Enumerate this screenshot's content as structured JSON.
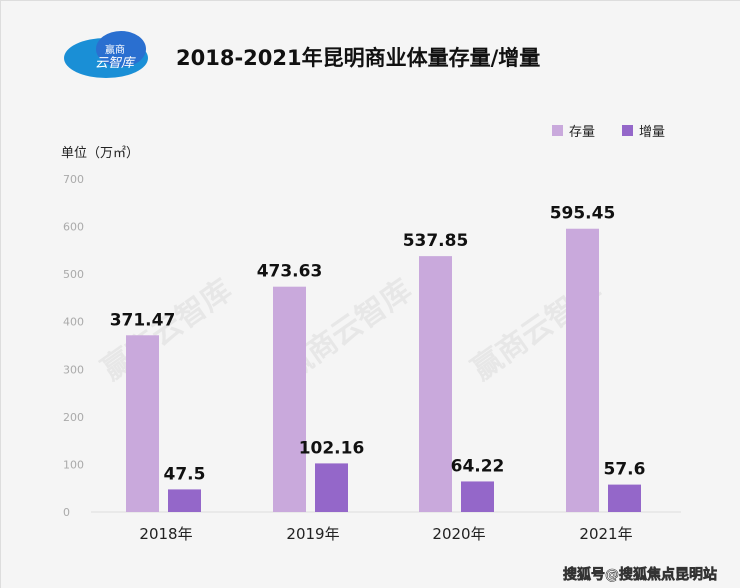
{
  "logo": {
    "text": "赢商云智库",
    "line1": "赢商",
    "line2": "云智库"
  },
  "watermark": "赢商云智库",
  "footer": "搜狐号@搜狐焦点昆明站",
  "chart_data": {
    "type": "bar",
    "title": "2018-2021年昆明商业体量存量/增量",
    "ylabel": "单位（万㎡）",
    "categories": [
      "2018年",
      "2019年",
      "2020年",
      "2021年"
    ],
    "series": [
      {
        "name": "存量",
        "values": [
          371.47,
          473.63,
          537.85,
          595.45
        ],
        "color": "#c9a9dc"
      },
      {
        "name": "增量",
        "values": [
          47.5,
          102.16,
          64.22,
          57.6
        ],
        "color": "#9467c9"
      }
    ],
    "data_labels": [
      [
        "371.47",
        "473.63",
        "537.85",
        "595.45"
      ],
      [
        "47.5",
        "102.16",
        "64.22",
        "57.6"
      ]
    ],
    "ylim": [
      0,
      700
    ],
    "yticks": [
      "0",
      "100",
      "200",
      "300",
      "400",
      "500",
      "600",
      "700"
    ],
    "grid": false,
    "legend": "top-right"
  }
}
